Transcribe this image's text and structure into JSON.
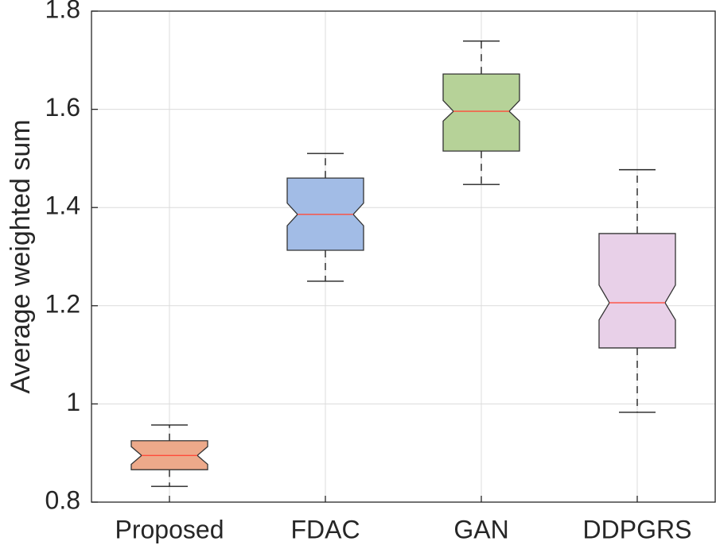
{
  "chart_data": {
    "type": "boxplot",
    "title": "",
    "xlabel": "",
    "ylabel": "Average weighted sum",
    "ylim": [
      0.8,
      1.8
    ],
    "yticks": [
      0.8,
      1.0,
      1.2,
      1.4,
      1.6,
      1.8
    ],
    "ytick_labels": [
      "0.8",
      "1",
      "1.2",
      "1.4",
      "1.6",
      "1.8"
    ],
    "grid": true,
    "notched": true,
    "median_color": "#ff4b3a",
    "categories": [
      "Proposed",
      "FDAC",
      "GAN",
      "DDPGRS"
    ],
    "boxes": [
      {
        "name": "Proposed",
        "whisker_low": 0.832,
        "q1": 0.866,
        "median": 0.895,
        "q3": 0.925,
        "whisker_high": 0.957,
        "notch_low": 0.877,
        "notch_high": 0.913,
        "color": "#eda98a"
      },
      {
        "name": "FDAC",
        "whisker_low": 1.25,
        "q1": 1.313,
        "median": 1.386,
        "q3": 1.46,
        "whisker_high": 1.51,
        "notch_low": 1.363,
        "notch_high": 1.409,
        "color": "#a2bce6"
      },
      {
        "name": "GAN",
        "whisker_low": 1.447,
        "q1": 1.515,
        "median": 1.596,
        "q3": 1.672,
        "whisker_high": 1.739,
        "notch_low": 1.576,
        "notch_high": 1.618,
        "color": "#b6d298"
      },
      {
        "name": "DDPGRS",
        "whisker_low": 0.983,
        "q1": 1.114,
        "median": 1.206,
        "q3": 1.347,
        "whisker_high": 1.477,
        "notch_low": 1.171,
        "notch_high": 1.242,
        "color": "#e8d0e8"
      }
    ]
  }
}
